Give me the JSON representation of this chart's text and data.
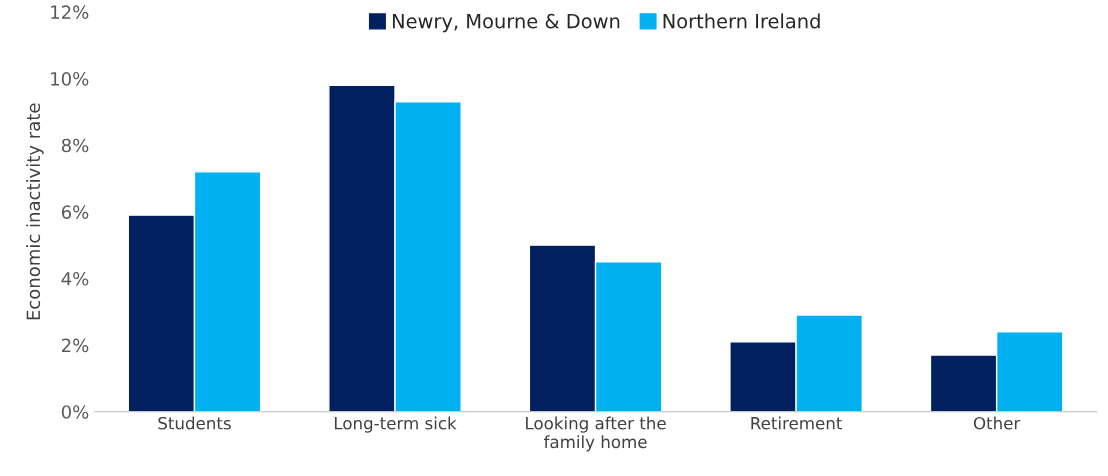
{
  "chart_data": {
    "type": "bar",
    "ylabel": "Economic inactivity rate",
    "categories": [
      "Students",
      "Long-term sick",
      "Looking after the\nfamily home",
      "Retirement",
      "Other"
    ],
    "series": [
      {
        "name": "Newry, Mourne & Down",
        "color": "#002060",
        "values": [
          5.9,
          9.8,
          5.0,
          2.1,
          1.7
        ]
      },
      {
        "name": "Northern Ireland",
        "color": "#00b0f0",
        "values": [
          7.2,
          9.3,
          4.5,
          2.9,
          2.4
        ]
      }
    ],
    "ylim": [
      0,
      12
    ],
    "yticks": [
      {
        "value": 0,
        "label": "0%"
      },
      {
        "value": 2,
        "label": "2%"
      },
      {
        "value": 4,
        "label": "4%"
      },
      {
        "value": 6,
        "label": "6%"
      },
      {
        "value": 8,
        "label": "8%"
      },
      {
        "value": 10,
        "label": "10%"
      },
      {
        "value": 12,
        "label": "12%"
      }
    ],
    "grid": false,
    "legend": "top"
  }
}
